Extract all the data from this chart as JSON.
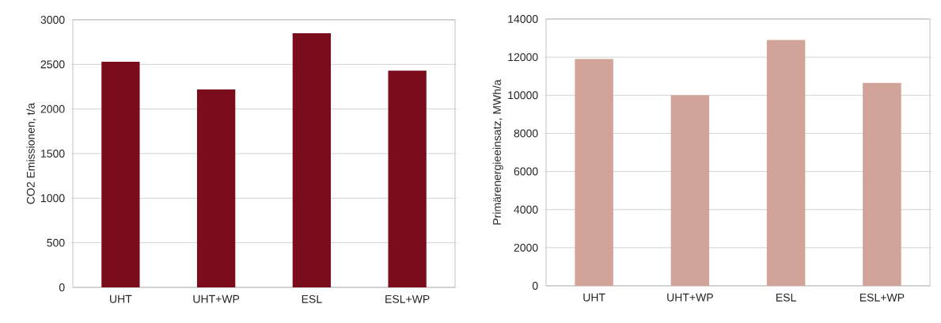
{
  "chart_data": [
    {
      "type": "bar",
      "categories": [
        "UHT",
        "UHT+WP",
        "ESL",
        "ESL+WP"
      ],
      "values": [
        2530,
        2220,
        2850,
        2430
      ],
      "color": "#7a0c1c",
      "ylabel": "CO2 Emissionen, t/a",
      "ylim": [
        0,
        3000
      ],
      "yticks": [
        0,
        500,
        1000,
        1500,
        2000,
        2500,
        3000
      ],
      "grid": "y"
    },
    {
      "type": "bar",
      "categories": [
        "UHT",
        "UHT+WP",
        "ESL",
        "ESL+WP"
      ],
      "values": [
        11900,
        10000,
        12900,
        10650
      ],
      "color": "#d2a398",
      "ylabel": "Primärenergieeinsatz, MWh/a",
      "ylim": [
        0,
        14000
      ],
      "yticks": [
        0,
        2000,
        4000,
        6000,
        8000,
        10000,
        12000,
        14000
      ],
      "grid": "y"
    }
  ]
}
